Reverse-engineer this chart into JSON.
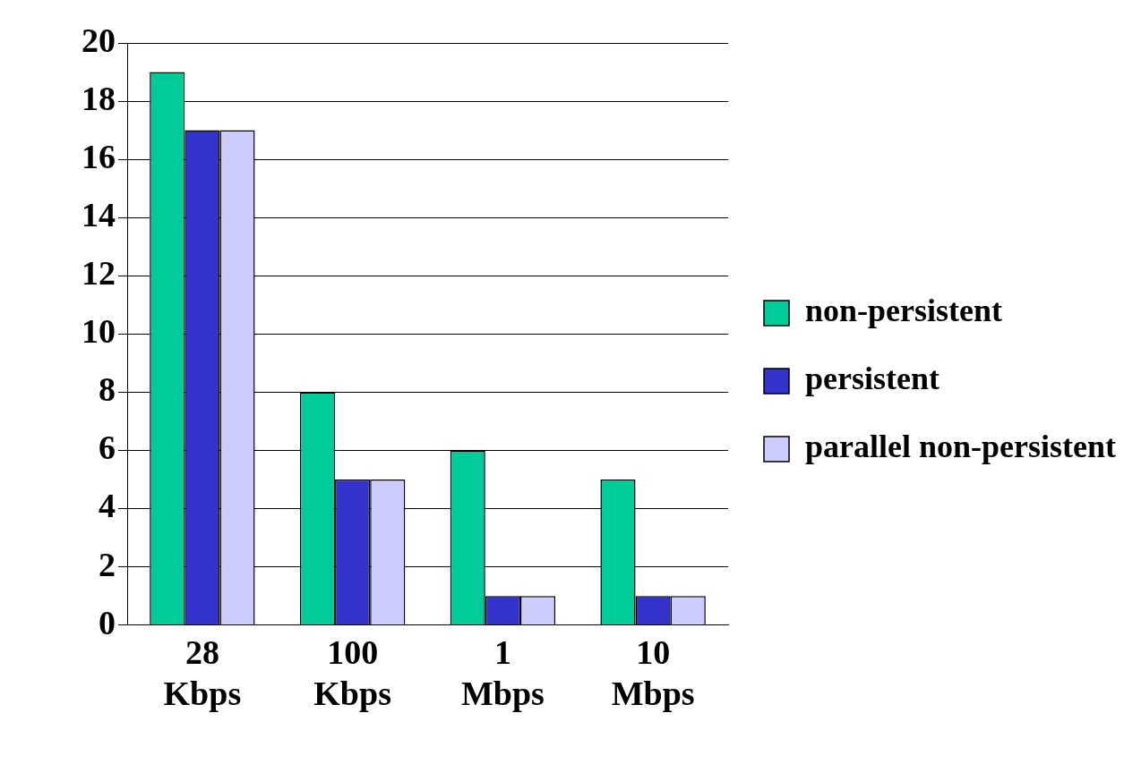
{
  "chart_data": {
    "type": "bar",
    "categories": [
      "28 Kbps",
      "100 Kbps",
      "1 Mbps",
      "10 Mbps"
    ],
    "series": [
      {
        "name": "non-persistent",
        "color": "#00cc99",
        "values": [
          19,
          8,
          6,
          5
        ]
      },
      {
        "name": "persistent",
        "color": "#3333cc",
        "values": [
          17,
          5,
          1,
          1
        ]
      },
      {
        "name": "parallel non-persistent",
        "color": "#ccccff",
        "values": [
          17,
          5,
          1,
          1
        ]
      }
    ],
    "ylim": [
      0,
      20
    ],
    "yticks": [
      0,
      2,
      4,
      6,
      8,
      10,
      12,
      14,
      16,
      18,
      20
    ],
    "grid": "y",
    "legend": "right"
  }
}
